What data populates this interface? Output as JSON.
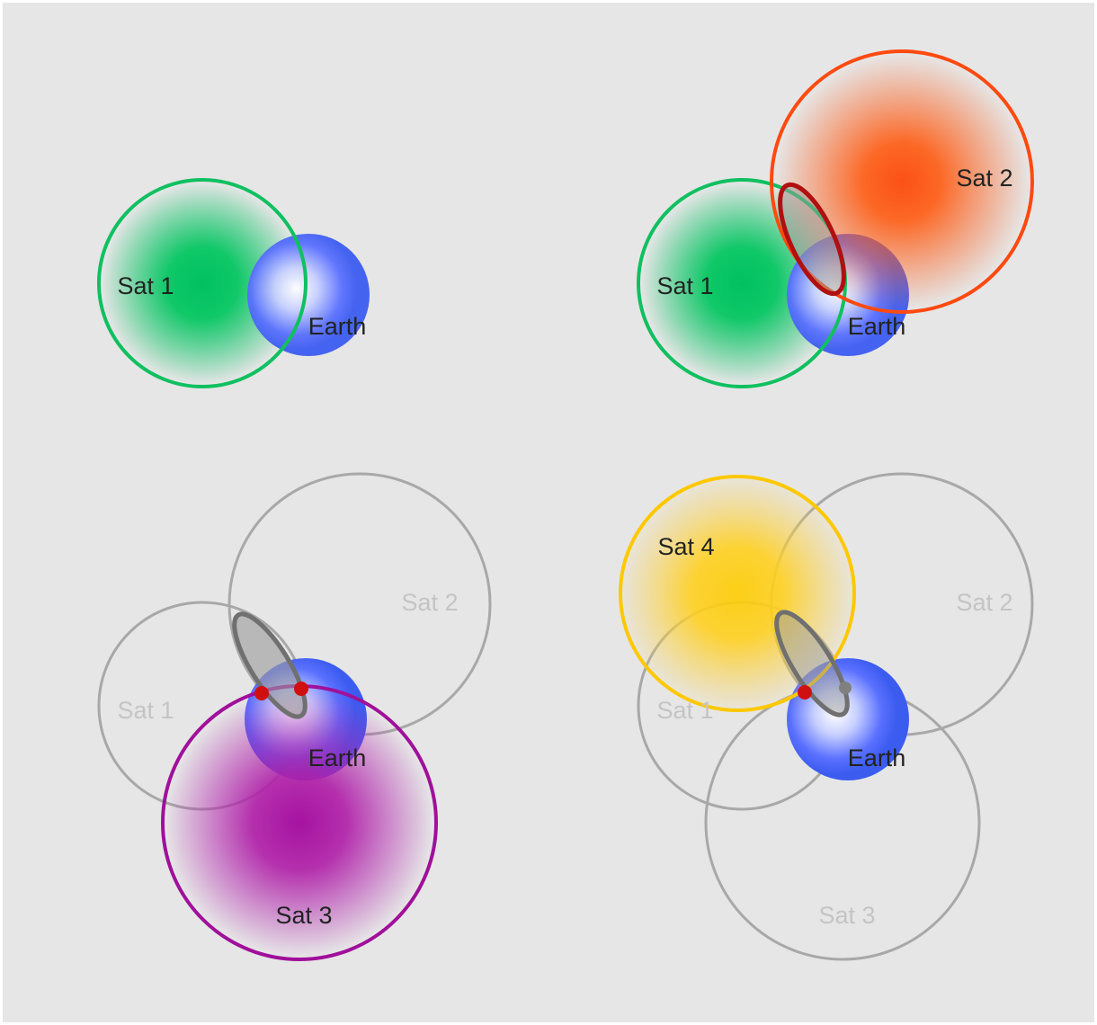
{
  "panels": [
    {
      "labels": [
        "Sat 1",
        "Earth"
      ]
    },
    {
      "labels": [
        "Sat 1",
        "Earth",
        "Sat 2"
      ]
    },
    {
      "labels": [
        "Sat 1",
        "Sat 2",
        "Earth",
        "Sat 3"
      ]
    },
    {
      "labels": [
        "Sat 4",
        "Sat 2",
        "Sat 1",
        "Earth",
        "Sat 3"
      ]
    }
  ]
}
